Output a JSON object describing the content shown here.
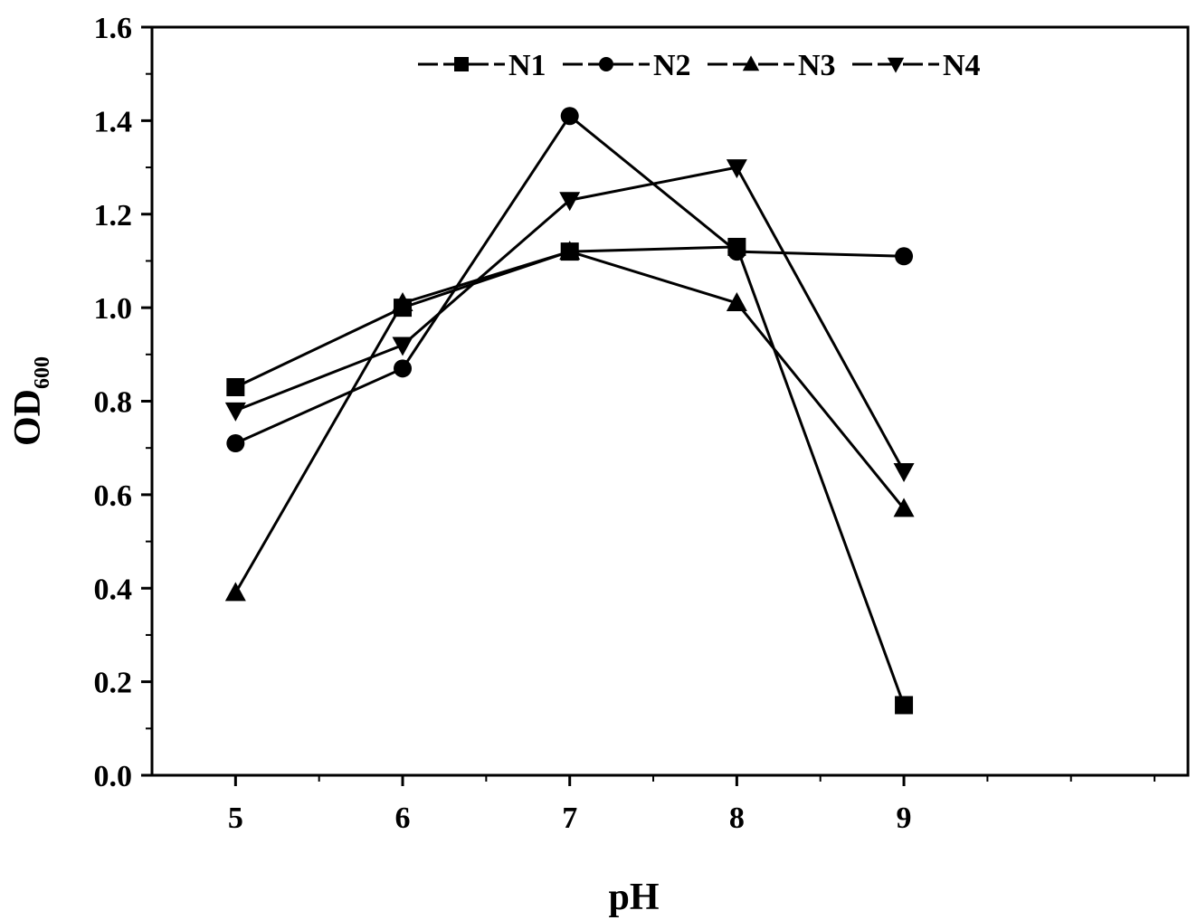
{
  "chart_data": {
    "type": "line",
    "xlabel": "pH",
    "ylabel": "OD",
    "ylabel_sub": "600",
    "x": [
      5,
      6,
      7,
      8,
      9
    ],
    "xlim": [
      4.5,
      10.7
    ],
    "ylim": [
      0.0,
      1.6
    ],
    "xticks": [
      "5",
      "6",
      "7",
      "8",
      "9"
    ],
    "yticks": [
      "0.0",
      "0.2",
      "0.4",
      "0.6",
      "0.8",
      "1.0",
      "1.2",
      "1.4",
      "1.6"
    ],
    "grid": false,
    "legend_position": "top-center",
    "series": [
      {
        "name": "N1",
        "marker": "square",
        "values": [
          0.83,
          1.0,
          1.12,
          1.13,
          0.15
        ]
      },
      {
        "name": "N2",
        "marker": "circle",
        "values": [
          0.71,
          0.87,
          1.41,
          1.12,
          1.11
        ]
      },
      {
        "name": "N3",
        "marker": "triangle-up",
        "values": [
          0.39,
          1.01,
          1.12,
          1.01,
          0.57
        ]
      },
      {
        "name": "N4",
        "marker": "triangle-down",
        "values": [
          0.78,
          0.92,
          1.23,
          1.3,
          0.65
        ]
      }
    ],
    "color": "#000000"
  }
}
